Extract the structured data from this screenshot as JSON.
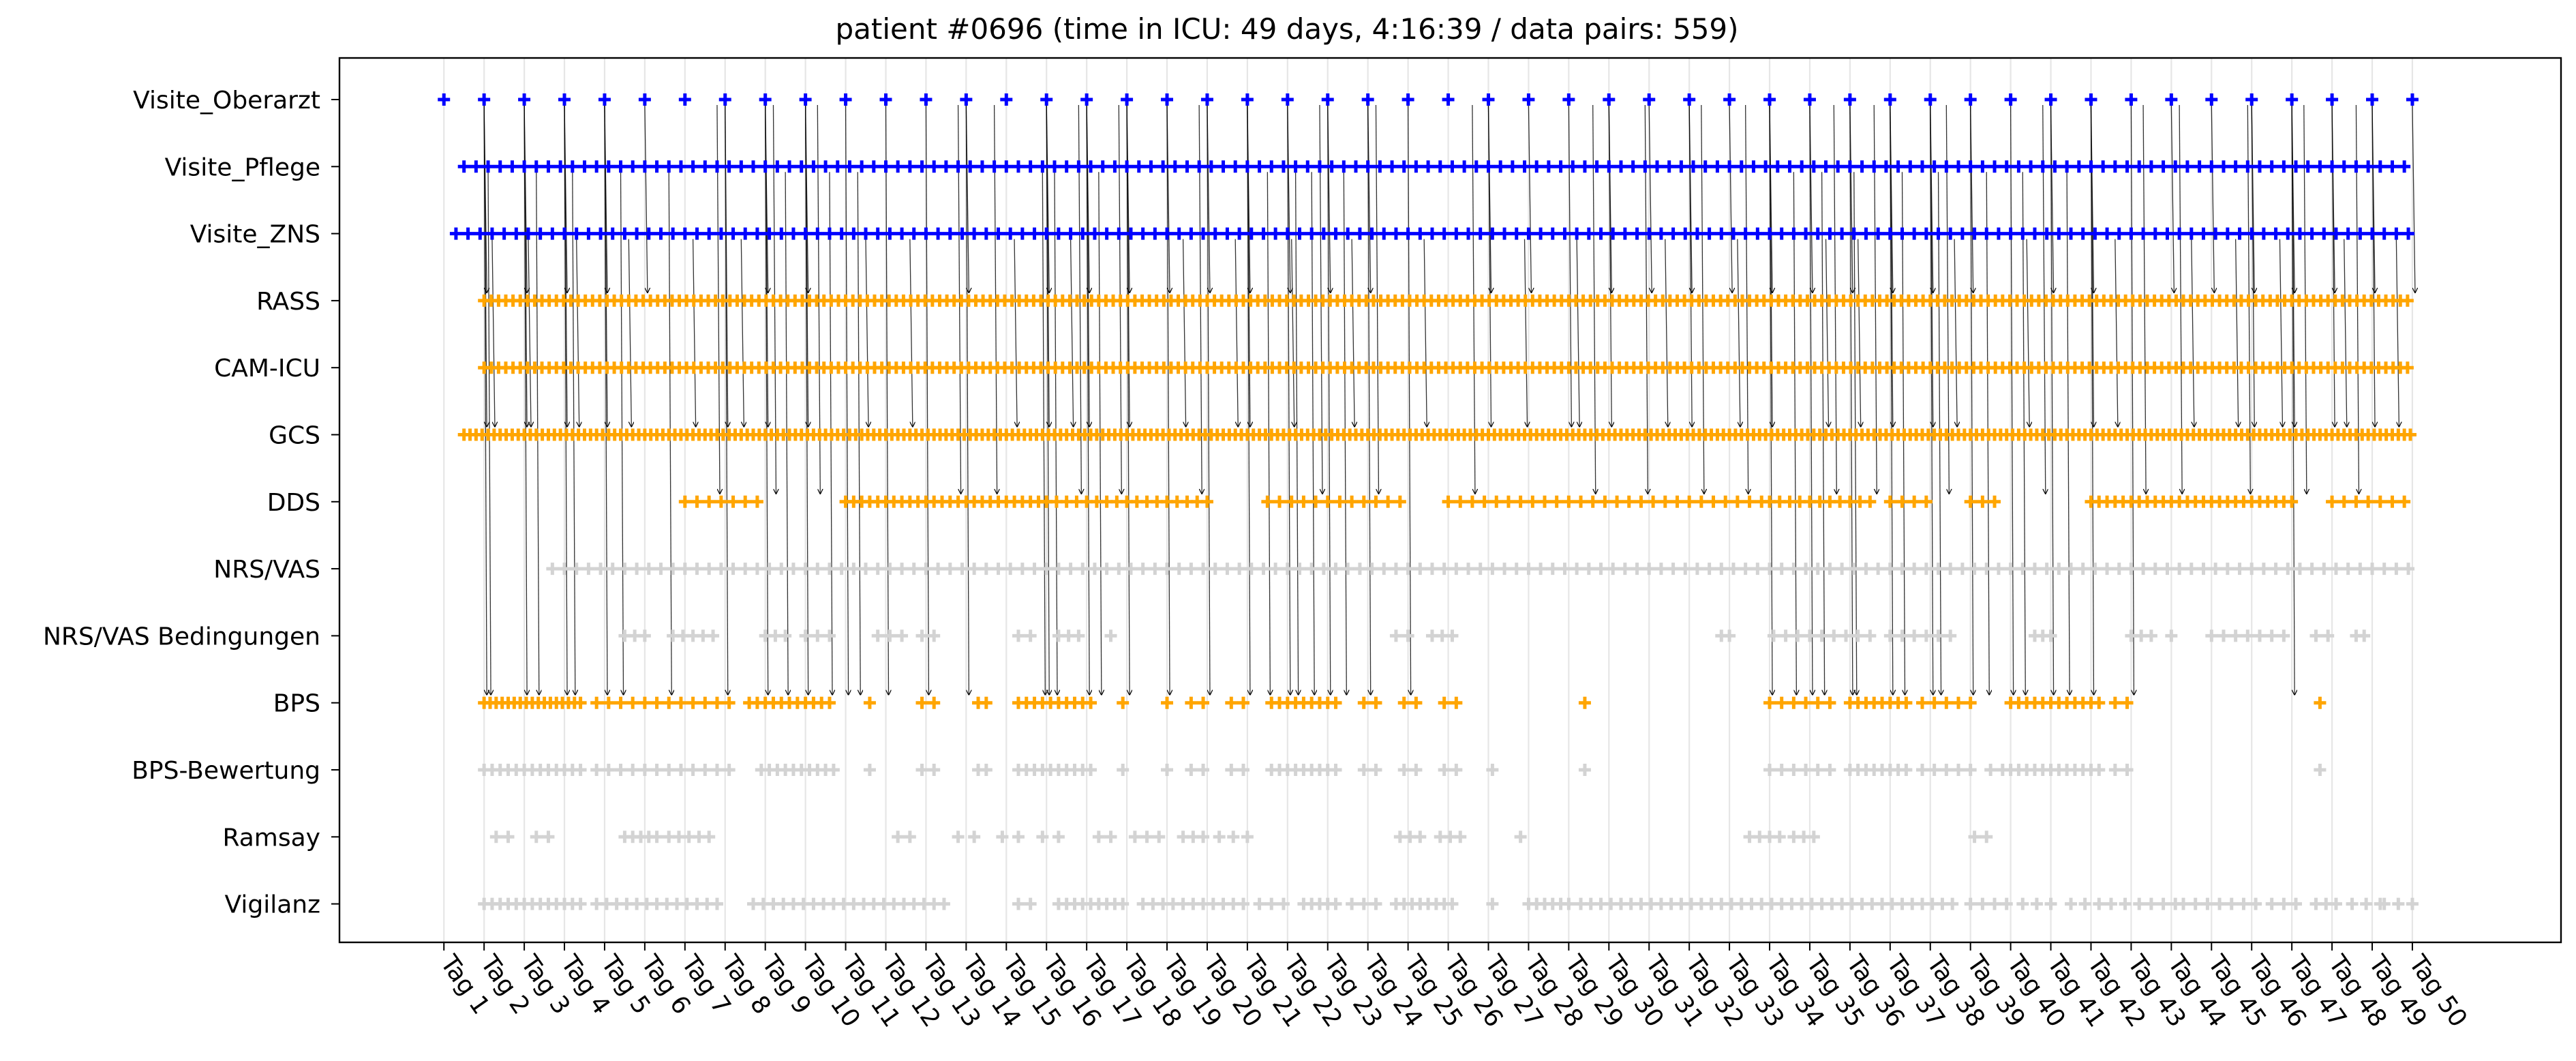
{
  "chart_data": {
    "type": "scatter",
    "title": "patient #0696 (time in ICU: 49 days, 4:16:39 / data pairs: 559)",
    "xlabel": "",
    "ylabel": "",
    "xlim": [
      -2.6,
      52.7
    ],
    "grid": "vertical",
    "x_ticks": [
      "Tag 1",
      "Tag 2",
      "Tag 3",
      "Tag 4",
      "Tag 5",
      "Tag 6",
      "Tag 7",
      "Tag 8",
      "Tag 9",
      "Tag 10",
      "Tag 11",
      "Tag 12",
      "Tag 13",
      "Tag 14",
      "Tag 15",
      "Tag 16",
      "Tag 17",
      "Tag 18",
      "Tag 19",
      "Tag 20",
      "Tag 21",
      "Tag 22",
      "Tag 23",
      "Tag 24",
      "Tag 25",
      "Tag 26",
      "Tag 27",
      "Tag 28",
      "Tag 29",
      "Tag 30",
      "Tag 31",
      "Tag 32",
      "Tag 33",
      "Tag 34",
      "Tag 35",
      "Tag 36",
      "Tag 37",
      "Tag 38",
      "Tag 39",
      "Tag 40",
      "Tag 41",
      "Tag 42",
      "Tag 43",
      "Tag 44",
      "Tag 45",
      "Tag 46",
      "Tag 47",
      "Tag 48",
      "Tag 49",
      "Tag 50"
    ],
    "categories": [
      "Visite_Oberarzt",
      "Visite_Pflege",
      "Visite_ZNS",
      "RASS",
      "CAM-ICU",
      "GCS",
      "DDS",
      "NRS/VAS",
      "NRS/VAS Bedingungen",
      "BPS",
      "BPS-Bewertung",
      "Ramsay",
      "Vigilanz"
    ],
    "colors": {
      "visit": "#0000ff",
      "paired": "#ffa500",
      "unpaired": "#d3d3d3",
      "arrow": "#000000",
      "grid": "#e6e6e6"
    },
    "series": [
      {
        "name": "Visite_Oberarzt",
        "color": "visit",
        "ranges": [
          [
            0,
            49,
            1
          ]
        ]
      },
      {
        "name": "Visite_Pflege",
        "color": "visit",
        "ranges": [
          [
            0.5,
            49,
            0.3
          ]
        ]
      },
      {
        "name": "Visite_ZNS",
        "color": "visit",
        "ranges": [
          [
            0.3,
            49,
            0.3
          ]
        ]
      },
      {
        "name": "RASS",
        "color": "paired",
        "ranges": [
          [
            1,
            49,
            0.18
          ]
        ]
      },
      {
        "name": "CAM-ICU",
        "color": "paired",
        "ranges": [
          [
            1,
            49,
            0.18
          ]
        ]
      },
      {
        "name": "GCS",
        "color": "paired",
        "ranges": [
          [
            0.5,
            49,
            0.15
          ]
        ]
      },
      {
        "name": "DDS",
        "color": "paired",
        "ranges": [
          [
            6,
            8,
            0.3
          ],
          [
            10,
            15,
            0.2
          ],
          [
            15,
            19.2,
            0.25
          ],
          [
            20.5,
            24,
            0.3
          ],
          [
            25,
            33,
            0.3
          ],
          [
            33,
            35.5,
            0.25
          ],
          [
            36,
            37,
            0.3
          ],
          [
            38,
            38.6,
            0.3
          ],
          [
            41,
            46,
            0.2
          ],
          [
            47,
            49,
            0.3
          ]
        ]
      },
      {
        "name": "NRS/VAS",
        "color": "unpaired",
        "ranges": [
          [
            2.7,
            49,
            0.3
          ]
        ]
      },
      {
        "name": "NRS/VAS Bedingungen",
        "color": "unpaired",
        "ranges": [
          [
            4.5,
            5,
            0.25
          ],
          [
            5.7,
            6.8,
            0.25
          ],
          [
            8,
            8.5,
            0.25
          ],
          [
            9,
            9.6,
            0.3
          ],
          [
            10.8,
            11.4,
            0.3
          ],
          [
            11.9,
            12.3,
            0.3
          ],
          [
            14.3,
            14.7,
            0.3
          ],
          [
            15.3,
            16,
            0.25
          ],
          [
            16.6,
            16.7,
            0.3
          ],
          [
            23.7,
            24,
            0.3
          ],
          [
            24.6,
            25.1,
            0.25
          ],
          [
            31.8,
            32,
            0.2
          ],
          [
            33.1,
            35.5,
            0.3
          ],
          [
            36,
            37.6,
            0.3
          ],
          [
            39.6,
            40,
            0.2
          ],
          [
            42,
            42.5,
            0.25
          ],
          [
            43,
            43.1,
            0.2
          ],
          [
            44,
            46,
            0.3
          ],
          [
            46.6,
            46.9,
            0.3
          ],
          [
            47.6,
            47.8,
            0.2
          ]
        ]
      },
      {
        "name": "BPS",
        "color": "paired",
        "ranges": [
          [
            1,
            3.4,
            0.15
          ],
          [
            3.8,
            7.3,
            0.3
          ],
          [
            7.6,
            9.7,
            0.2
          ],
          [
            10.6,
            10.7,
            0.2
          ],
          [
            11.9,
            12.3,
            0.3
          ],
          [
            13.3,
            13.5,
            0.2
          ],
          [
            14.3,
            16.2,
            0.2
          ],
          [
            16.9,
            17,
            0.2
          ],
          [
            18,
            18.1,
            0.2
          ],
          [
            18.6,
            19.1,
            0.3
          ],
          [
            19.6,
            20.1,
            0.3
          ],
          [
            20.6,
            22.2,
            0.2
          ],
          [
            22.9,
            23.4,
            0.3
          ],
          [
            23.9,
            24.4,
            0.3
          ],
          [
            24.9,
            25.4,
            0.3
          ],
          [
            28.4,
            28.5,
            0.2
          ],
          [
            33,
            34.5,
            0.3
          ],
          [
            35,
            36.5,
            0.2
          ],
          [
            36.8,
            38,
            0.3
          ],
          [
            39,
            41.2,
            0.2
          ],
          [
            41.6,
            42,
            0.3
          ],
          [
            46.7,
            46.8,
            0.2
          ]
        ]
      },
      {
        "name": "BPS-Bewertung",
        "color": "unpaired",
        "ranges": [
          [
            1,
            3.4,
            0.2
          ],
          [
            3.8,
            7.3,
            0.3
          ],
          [
            7.9,
            9.7,
            0.2
          ],
          [
            10.6,
            10.7,
            0.2
          ],
          [
            11.9,
            12.3,
            0.3
          ],
          [
            13.3,
            13.5,
            0.2
          ],
          [
            14.3,
            16.2,
            0.2
          ],
          [
            16.9,
            17,
            0.2
          ],
          [
            18,
            18.1,
            0.2
          ],
          [
            18.6,
            19.1,
            0.3
          ],
          [
            19.6,
            20.1,
            0.3
          ],
          [
            20.6,
            22.2,
            0.2
          ],
          [
            22.9,
            23.4,
            0.3
          ],
          [
            23.9,
            24.4,
            0.3
          ],
          [
            24.9,
            25.4,
            0.3
          ],
          [
            26.1,
            26.2,
            0.2
          ],
          [
            28.4,
            28.5,
            0.2
          ],
          [
            33,
            34.5,
            0.3
          ],
          [
            35,
            36.5,
            0.2
          ],
          [
            36.8,
            38,
            0.3
          ],
          [
            38.5,
            38.8,
            0.3
          ],
          [
            39,
            41.2,
            0.2
          ],
          [
            41.6,
            42,
            0.3
          ],
          [
            46.7,
            46.8,
            0.2
          ]
        ]
      },
      {
        "name": "Ramsay",
        "color": "unpaired",
        "ranges": [
          [
            1.3,
            1.6,
            0.3
          ],
          [
            2.3,
            2.6,
            0.3
          ],
          [
            4.5,
            5.3,
            0.2
          ],
          [
            5.6,
            6.8,
            0.25
          ],
          [
            11.3,
            11.6,
            0.3
          ],
          [
            12.8,
            13.2,
            0.4
          ],
          [
            13.9,
            14.3,
            0.4
          ],
          [
            14.9,
            15.3,
            0.4
          ],
          [
            16.3,
            16.6,
            0.3
          ],
          [
            17.2,
            17.8,
            0.3
          ],
          [
            18.4,
            18.9,
            0.25
          ],
          [
            19.3,
            20,
            0.35
          ],
          [
            23.8,
            24.3,
            0.25
          ],
          [
            24.8,
            25.3,
            0.25
          ],
          [
            26.8,
            26.9,
            0.2
          ],
          [
            32.5,
            33.3,
            0.25
          ],
          [
            33.6,
            34.1,
            0.25
          ],
          [
            38.1,
            38.4,
            0.3
          ]
        ]
      },
      {
        "name": "Vigilanz",
        "color": "unpaired",
        "ranges": [
          [
            1,
            3.4,
            0.2
          ],
          [
            3.8,
            6.9,
            0.25
          ],
          [
            7.7,
            12.6,
            0.25
          ],
          [
            14.3,
            14.7,
            0.3
          ],
          [
            15.3,
            17,
            0.2
          ],
          [
            17.4,
            20,
            0.25
          ],
          [
            20.3,
            21,
            0.3
          ],
          [
            21.4,
            22.2,
            0.2
          ],
          [
            22.6,
            23.2,
            0.3
          ],
          [
            23.7,
            25.2,
            0.2
          ],
          [
            26.1,
            26.2,
            0.2
          ],
          [
            27,
            28,
            0.2
          ],
          [
            28.3,
            37.6,
            0.25
          ],
          [
            38,
            39,
            0.3
          ],
          [
            39.3,
            40,
            0.35
          ],
          [
            40.5,
            41.2,
            0.35
          ],
          [
            41.5,
            42.2,
            0.35
          ],
          [
            42.5,
            43.1,
            0.3
          ],
          [
            43.3,
            44.2,
            0.3
          ],
          [
            44.5,
            45.1,
            0.3
          ],
          [
            45.5,
            46.1,
            0.3
          ],
          [
            46.6,
            47.1,
            0.25
          ],
          [
            47.5,
            48.2,
            0.35
          ],
          [
            48.3,
            49,
            0.35
          ]
        ]
      }
    ],
    "pair_links": [
      {
        "from": "Visite_Oberarzt",
        "to": "RASS",
        "x": [
          1,
          2,
          3,
          4,
          5,
          8,
          9,
          13,
          15,
          16,
          17,
          18,
          19,
          20,
          21,
          22,
          23,
          26,
          27,
          29,
          30,
          31,
          32,
          33,
          34,
          35,
          36,
          37,
          38,
          40,
          41,
          43,
          44,
          45,
          46,
          47,
          48,
          49
        ]
      },
      {
        "from": "Visite_Oberarzt",
        "to": "GCS",
        "x": [
          1,
          2,
          3,
          4,
          7,
          8,
          9,
          15,
          16,
          17,
          20,
          26,
          28,
          29,
          31,
          33,
          36,
          37,
          41,
          45,
          46,
          47,
          48
        ]
      },
      {
        "from": "Visite_Oberarzt",
        "to": "DDS",
        "x": [
          6.8,
          8.2,
          9.3,
          12.8,
          13.7,
          15.8,
          16.8,
          18.8,
          21.8,
          23.2,
          25.6,
          28.6,
          29.9,
          31.3,
          32.4,
          34.6,
          35.6,
          37.4,
          39.8,
          42.3,
          43.2,
          44.9,
          46.3,
          47.6
        ]
      },
      {
        "from": "Visite_Oberarzt",
        "to": "BPS",
        "x": [
          1,
          2,
          3,
          4,
          7,
          8,
          9,
          10,
          11,
          12,
          13,
          15,
          16,
          17,
          18,
          19,
          20,
          21,
          22,
          23,
          24,
          33,
          34,
          35,
          36,
          37,
          38,
          39,
          40,
          41,
          42,
          46
        ]
      },
      {
        "from": "Visite_ZNS",
        "to": "GCS",
        "x": [
          1.2,
          2.1,
          3.3,
          4.6,
          6.2,
          7.4,
          10.5,
          11.6,
          14.2,
          15.6,
          18.4,
          19.7,
          21.1,
          22.6,
          24.4,
          26.9,
          28.2,
          30.4,
          32.2,
          34.4,
          35.2,
          37.6,
          39.4,
          41.6,
          43.5,
          44.6,
          45.7,
          47.3,
          48.6
        ]
      },
      {
        "from": "Visite_Pflege",
        "to": "BPS",
        "x": [
          1.1,
          2.3,
          3.2,
          4.4,
          5.6,
          8.5,
          9.6,
          10.3,
          14.9,
          15.2,
          16.3,
          20.5,
          21.2,
          21.6,
          22.4,
          33.6,
          34.3,
          35.1,
          36.3,
          37.2,
          38.4,
          39.3,
          40.4
        ]
      }
    ]
  }
}
